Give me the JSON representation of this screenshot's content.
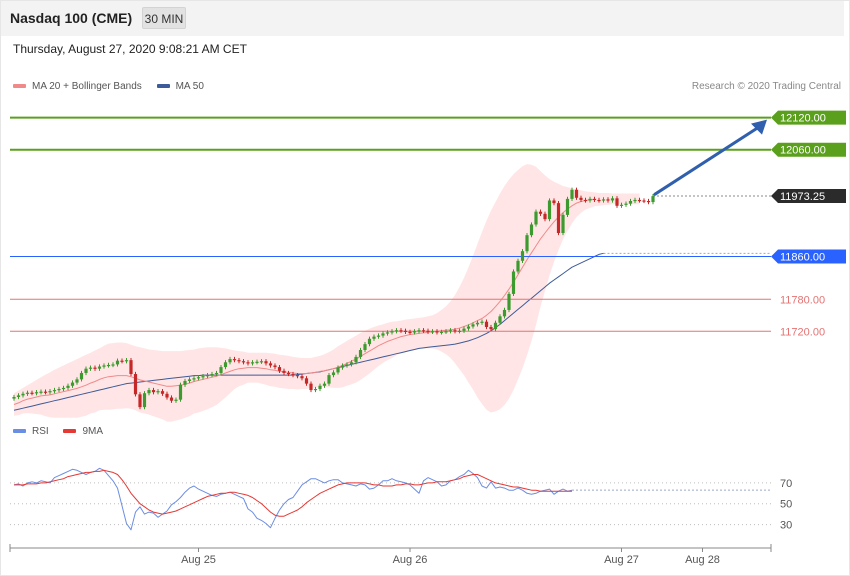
{
  "header": {
    "title": "Nasdaq 100 (CME)",
    "interval_label": "30 MIN"
  },
  "timestamp": "Thursday, August 27, 2020 9:08:21 AM CET",
  "credit": "Research © 2020 Trading Central",
  "colors": {
    "bullish": "#3c9a2e",
    "bearish": "#c62828",
    "resistance": "#5aa01c",
    "pivot": "#2962ff",
    "support": "#e57373",
    "ma20": "#f08a8a",
    "ma50": "#3d5a99",
    "bands": "#ffdcdc",
    "rsi": "#6b8de3",
    "rsi_ma": "#e53935",
    "arrow": "#2f5fad",
    "last_price_bg": "#2b2b2b"
  },
  "chart_data": [
    {
      "type": "candlestick",
      "legend": [
        {
          "label": "MA 20 + Bollinger Bands",
          "color": "#f08a8a"
        },
        {
          "label": "MA 50",
          "color": "#3d5a99"
        }
      ],
      "legend_position": "top-left",
      "ylim": [
        11582,
        12140
      ],
      "x_ticks": [
        "Aug 25",
        "Aug 26",
        "Aug 27",
        "Aug 28"
      ],
      "levels": [
        {
          "value": 12120.0,
          "label": "12120.00",
          "kind": "resistance"
        },
        {
          "value": 12060.0,
          "label": "12060.00",
          "kind": "resistance"
        },
        {
          "value": 11973.25,
          "label": "11973.25",
          "kind": "last_price"
        },
        {
          "value": 11860.0,
          "label": "11860.00",
          "kind": "pivot"
        },
        {
          "value": 11780.0,
          "label": "11780.00",
          "kind": "support"
        },
        {
          "value": 11720.0,
          "label": "11720.00",
          "kind": "support"
        }
      ],
      "close": [
        11597,
        11600,
        11603,
        11605,
        11604,
        11606,
        11607,
        11606,
        11608,
        11610,
        11612,
        11614,
        11618,
        11624,
        11630,
        11642,
        11650,
        11652,
        11650,
        11654,
        11656,
        11657,
        11658,
        11665,
        11664,
        11666,
        11640,
        11602,
        11578,
        11604,
        11610,
        11606,
        11608,
        11603,
        11596,
        11590,
        11592,
        11620,
        11627,
        11630,
        11632,
        11634,
        11636,
        11638,
        11640,
        11642,
        11653,
        11662,
        11668,
        11666,
        11664,
        11662,
        11660,
        11662,
        11663,
        11664,
        11660,
        11656,
        11653,
        11646,
        11642,
        11640,
        11638,
        11636,
        11632,
        11622,
        11610,
        11612,
        11618,
        11622,
        11638,
        11643,
        11652,
        11656,
        11658,
        11662,
        11672,
        11685,
        11696,
        11706,
        11710,
        11712,
        11716,
        11718,
        11720,
        11722,
        11721,
        11719,
        11718,
        11720,
        11722,
        11721,
        11719,
        11720,
        11718,
        11719,
        11720,
        11722,
        11720,
        11721,
        11725,
        11729,
        11733,
        11736,
        11738,
        11728,
        11724,
        11736,
        11748,
        11760,
        11790,
        11832,
        11852,
        11870,
        11900,
        11920,
        11944,
        11940,
        11930,
        11965,
        11960,
        11904,
        11938,
        11968,
        11985,
        11970,
        11966,
        11965,
        11968,
        11966,
        11965,
        11967,
        11965,
        11969,
        11955,
        11957,
        11959,
        11964,
        11966,
        11965,
        11964,
        11962,
        11973
      ],
      "ma20": [
        11583,
        11586,
        11590,
        11593,
        11595,
        11597,
        11599,
        11600,
        11601,
        11603,
        11605,
        11607,
        11609,
        11611,
        11613,
        11616,
        11619,
        11623,
        11626,
        11630,
        11633,
        11635,
        11636,
        11637,
        11637,
        11637,
        11635,
        11632,
        11629,
        11627,
        11625,
        11623,
        11621,
        11619,
        11617,
        11617,
        11618,
        11619,
        11621,
        11623,
        11626,
        11628,
        11630,
        11632,
        11634,
        11636,
        11639,
        11642,
        11645,
        11648,
        11650,
        11651,
        11652,
        11652,
        11652,
        11651,
        11650,
        11648,
        11647,
        11645,
        11644,
        11643,
        11642,
        11641,
        11641,
        11641,
        11642,
        11643,
        11645,
        11646,
        11648,
        11650,
        11653,
        11656,
        11660,
        11664,
        11668,
        11673,
        11678,
        11683,
        11688,
        11693,
        11697,
        11701,
        11704,
        11707,
        11710,
        11712,
        11714,
        11715,
        11716,
        11717,
        11718,
        11719,
        11720,
        11721,
        11722,
        11723,
        11724,
        11726,
        11729,
        11732,
        11736,
        11740,
        11744,
        11750,
        11757,
        11766,
        11776,
        11787,
        11799,
        11812,
        11826,
        11840,
        11854,
        11867,
        11880,
        11893,
        11904,
        11915,
        11925,
        11934,
        11942,
        11949,
        11955,
        11960,
        11963,
        11965,
        11966,
        11967
      ],
      "bb_upper": [
        11604,
        11609,
        11614,
        11619,
        11624,
        11629,
        11634,
        11639,
        11643,
        11648,
        11652,
        11656,
        11660,
        11664,
        11668,
        11672,
        11676,
        11680,
        11684,
        11688,
        11693,
        11697,
        11698,
        11699,
        11699,
        11698,
        11695,
        11692,
        11690,
        11688,
        11686,
        11685,
        11684,
        11683,
        11683,
        11683,
        11683,
        11683,
        11684,
        11685,
        11686,
        11688,
        11689,
        11690,
        11690,
        11690,
        11689,
        11688,
        11686,
        11684,
        11683,
        11682,
        11680,
        11680,
        11680,
        11680,
        11680,
        11679,
        11678,
        11676,
        11675,
        11674,
        11672,
        11671,
        11670,
        11670,
        11670,
        11672,
        11674,
        11677,
        11681,
        11686,
        11692,
        11697,
        11702,
        11707,
        11712,
        11717,
        11721,
        11725,
        11728,
        11731,
        11733,
        11736,
        11738,
        11739,
        11740,
        11742,
        11743,
        11744,
        11745,
        11746,
        11748,
        11750,
        11754,
        11760,
        11767,
        11776,
        11788,
        11803,
        11820,
        11840,
        11861,
        11884,
        11906,
        11927,
        11946,
        11962,
        11978,
        11992,
        12004,
        12014,
        12022,
        12029,
        12033,
        12032,
        12028,
        12020,
        12012,
        12005,
        12000,
        11996,
        11992,
        11990,
        11988,
        11986,
        11984,
        11982,
        11981,
        11980,
        11979,
        11979,
        11979,
        11978,
        11978,
        11978,
        11978,
        11978,
        11978,
        11978
      ],
      "bb_lower": [
        11562,
        11563,
        11566,
        11567,
        11566,
        11565,
        11564,
        11561,
        11559,
        11558,
        11558,
        11558,
        11558,
        11558,
        11558,
        11560,
        11562,
        11566,
        11568,
        11572,
        11573,
        11573,
        11574,
        11575,
        11575,
        11576,
        11575,
        11572,
        11568,
        11566,
        11564,
        11561,
        11558,
        11555,
        11551,
        11551,
        11553,
        11555,
        11558,
        11561,
        11566,
        11568,
        11571,
        11574,
        11578,
        11582,
        11589,
        11596,
        11604,
        11612,
        11617,
        11620,
        11624,
        11624,
        11624,
        11622,
        11620,
        11617,
        11616,
        11614,
        11613,
        11612,
        11612,
        11611,
        11612,
        11612,
        11614,
        11614,
        11616,
        11615,
        11615,
        11614,
        11614,
        11615,
        11618,
        11621,
        11624,
        11629,
        11635,
        11641,
        11648,
        11655,
        11661,
        11666,
        11670,
        11675,
        11680,
        11682,
        11685,
        11686,
        11687,
        11688,
        11688,
        11688,
        11686,
        11682,
        11677,
        11670,
        11660,
        11649,
        11638,
        11624,
        11611,
        11596,
        11584,
        11573,
        11568,
        11570,
        11574,
        11582,
        11594,
        11610,
        11630,
        11651,
        11675,
        11702,
        11732,
        11766,
        11796,
        11825,
        11850,
        11872,
        11892,
        11908,
        11922,
        11934,
        11942,
        11948,
        11951,
        11954,
        11955,
        11956,
        11957,
        11958,
        11958,
        11958,
        11958,
        11958,
        11958,
        11958
      ],
      "ma50": [
        11572,
        11574,
        11576,
        11578,
        11580,
        11582,
        11584,
        11586,
        11588,
        11590,
        11592,
        11594,
        11596,
        11598,
        11600,
        11602,
        11604,
        11606,
        11608,
        11610,
        11612,
        11614,
        11616,
        11618,
        11620,
        11622,
        11623,
        11624,
        11625,
        11626,
        11627,
        11628,
        11629,
        11630,
        11631,
        11632,
        11633,
        11634,
        11635,
        11636,
        11637,
        11637,
        11638,
        11638,
        11638,
        11638,
        11638,
        11638,
        11638,
        11638,
        11638,
        11638,
        11638,
        11638,
        11638,
        11638,
        11638,
        11638,
        11638,
        11638,
        11638,
        11638,
        11638,
        11639,
        11640,
        11641,
        11642,
        11643,
        11644,
        11646,
        11648,
        11650,
        11652,
        11654,
        11656,
        11658,
        11660,
        11662,
        11664,
        11666,
        11668,
        11670,
        11672,
        11674,
        11676,
        11678,
        11680,
        11682,
        11684,
        11686,
        11688,
        11689,
        11690,
        11691,
        11692,
        11693,
        11694,
        11695,
        11696,
        11698,
        11700,
        11702,
        11705,
        11708,
        11712,
        11716,
        11721,
        11727,
        11733,
        11740,
        11747,
        11754,
        11761,
        11768,
        11775,
        11782,
        11789,
        11796,
        11803,
        11810,
        11816,
        11822,
        11828,
        11834,
        11840,
        11844,
        11848,
        11852,
        11856,
        11860,
        11864,
        11866
      ]
    },
    {
      "type": "line",
      "legend": [
        {
          "label": "RSI",
          "color": "#6b8de3"
        },
        {
          "label": "9MA",
          "color": "#e53935"
        }
      ],
      "legend_position": "top-left",
      "ylim": [
        20,
        90
      ],
      "y_ticks": [
        {
          "value": 70,
          "label": "70"
        },
        {
          "value": 50,
          "label": "50"
        },
        {
          "value": 30,
          "label": "30"
        }
      ],
      "series": [
        {
          "name": "RSI",
          "values": [
            68,
            69,
            67,
            70,
            71,
            70,
            72,
            71,
            70,
            75,
            77,
            79,
            81,
            83,
            82,
            80,
            78,
            80,
            81,
            84,
            82,
            77,
            72,
            65,
            48,
            31,
            25,
            42,
            47,
            40,
            42,
            41,
            37,
            40,
            43,
            49,
            52,
            56,
            61,
            65,
            67,
            64,
            62,
            60,
            58,
            57,
            59,
            60,
            61,
            59,
            57,
            55,
            45,
            42,
            36,
            34,
            31,
            27,
            36,
            44,
            50,
            54,
            56,
            62,
            68,
            71,
            74,
            74,
            72,
            70,
            72,
            73,
            73,
            70,
            69,
            68,
            67,
            69,
            68,
            64,
            65,
            68,
            72,
            72,
            74,
            72,
            71,
            70,
            68,
            64,
            60,
            72,
            75,
            73,
            71,
            67,
            68,
            72,
            73,
            76,
            78,
            82,
            79,
            75,
            67,
            65,
            71,
            65,
            66,
            65,
            63,
            63,
            65,
            63,
            60,
            59,
            60,
            62,
            63,
            64,
            59,
            62,
            64,
            62,
            63
          ]
        },
        {
          "name": "9MA",
          "values": [
            68,
            68,
            68,
            69,
            69,
            69,
            70,
            70,
            71,
            72,
            73,
            74,
            76,
            77,
            78,
            79,
            80,
            80,
            81,
            81,
            82,
            81,
            80,
            78,
            73,
            67,
            60,
            55,
            50,
            47,
            44,
            42,
            41,
            40,
            41,
            42,
            43,
            45,
            47,
            49,
            51,
            53,
            55,
            57,
            58,
            59,
            60,
            60,
            61,
            61,
            60,
            59,
            58,
            56,
            53,
            50,
            46,
            42,
            39,
            38,
            38,
            40,
            42,
            44,
            47,
            51,
            54,
            57,
            60,
            62,
            64,
            66,
            68,
            69,
            70,
            70,
            70,
            70,
            70,
            69,
            68,
            68,
            67,
            67,
            67,
            68,
            68,
            69,
            69,
            68,
            68,
            69,
            70,
            70,
            71,
            71,
            71,
            72,
            73,
            74,
            76,
            77,
            78,
            78,
            76,
            74,
            72,
            70,
            69,
            68,
            67,
            66,
            66,
            65,
            64,
            63,
            63,
            62,
            62,
            62,
            62,
            62,
            62,
            62,
            62
          ]
        }
      ]
    }
  ]
}
